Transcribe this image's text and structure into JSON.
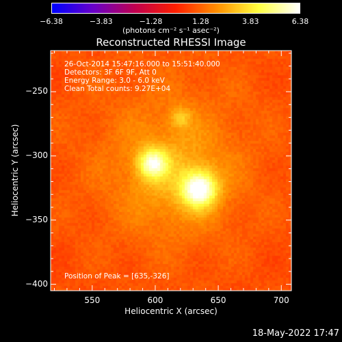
{
  "chart_data": {
    "type": "heatmap",
    "title": "Reconstructed RHESSI Image",
    "xlabel": "Heliocentric X (arcsec)",
    "ylabel": "Heliocentric Y (arcsec)",
    "xlim": [
      517,
      708
    ],
    "ylim": [
      -405,
      -218
    ],
    "x_ticks": [
      550,
      600,
      650,
      700
    ],
    "y_ticks": [
      -250,
      -300,
      -350,
      -400
    ],
    "colorbar": {
      "min": -6.38,
      "max": 6.38,
      "tick_labels": [
        "-6.38",
        "-3.83",
        "-1.28",
        "1.28",
        "3.83",
        "6.38"
      ],
      "unit_label": "(photons cm⁻² s⁻¹ asec⁻²)",
      "colors": [
        "#0000ff",
        "#6a00c8",
        "#c00050",
        "#ff2000",
        "#ff9000",
        "#ffff40",
        "#ffffff"
      ]
    },
    "sources": [
      {
        "x": 635,
        "y": -326,
        "peak": 6.38
      },
      {
        "x": 598,
        "y": -306,
        "peak": 5.2
      },
      {
        "x": 620,
        "y": -270,
        "peak": 3.0
      }
    ],
    "annotations": [
      "26-Oct-2014 15:47:16.000 to 15:51:40.000",
      "Detectors: 3F 6F 9F, Att 0",
      "Energy Range: 3.0 - 6.0 keV",
      "Clean    Total counts: 9.27E+04"
    ],
    "peak_label": "Position of Peak = [635,-326]"
  },
  "timestamp": "18-May-2022 17:47"
}
